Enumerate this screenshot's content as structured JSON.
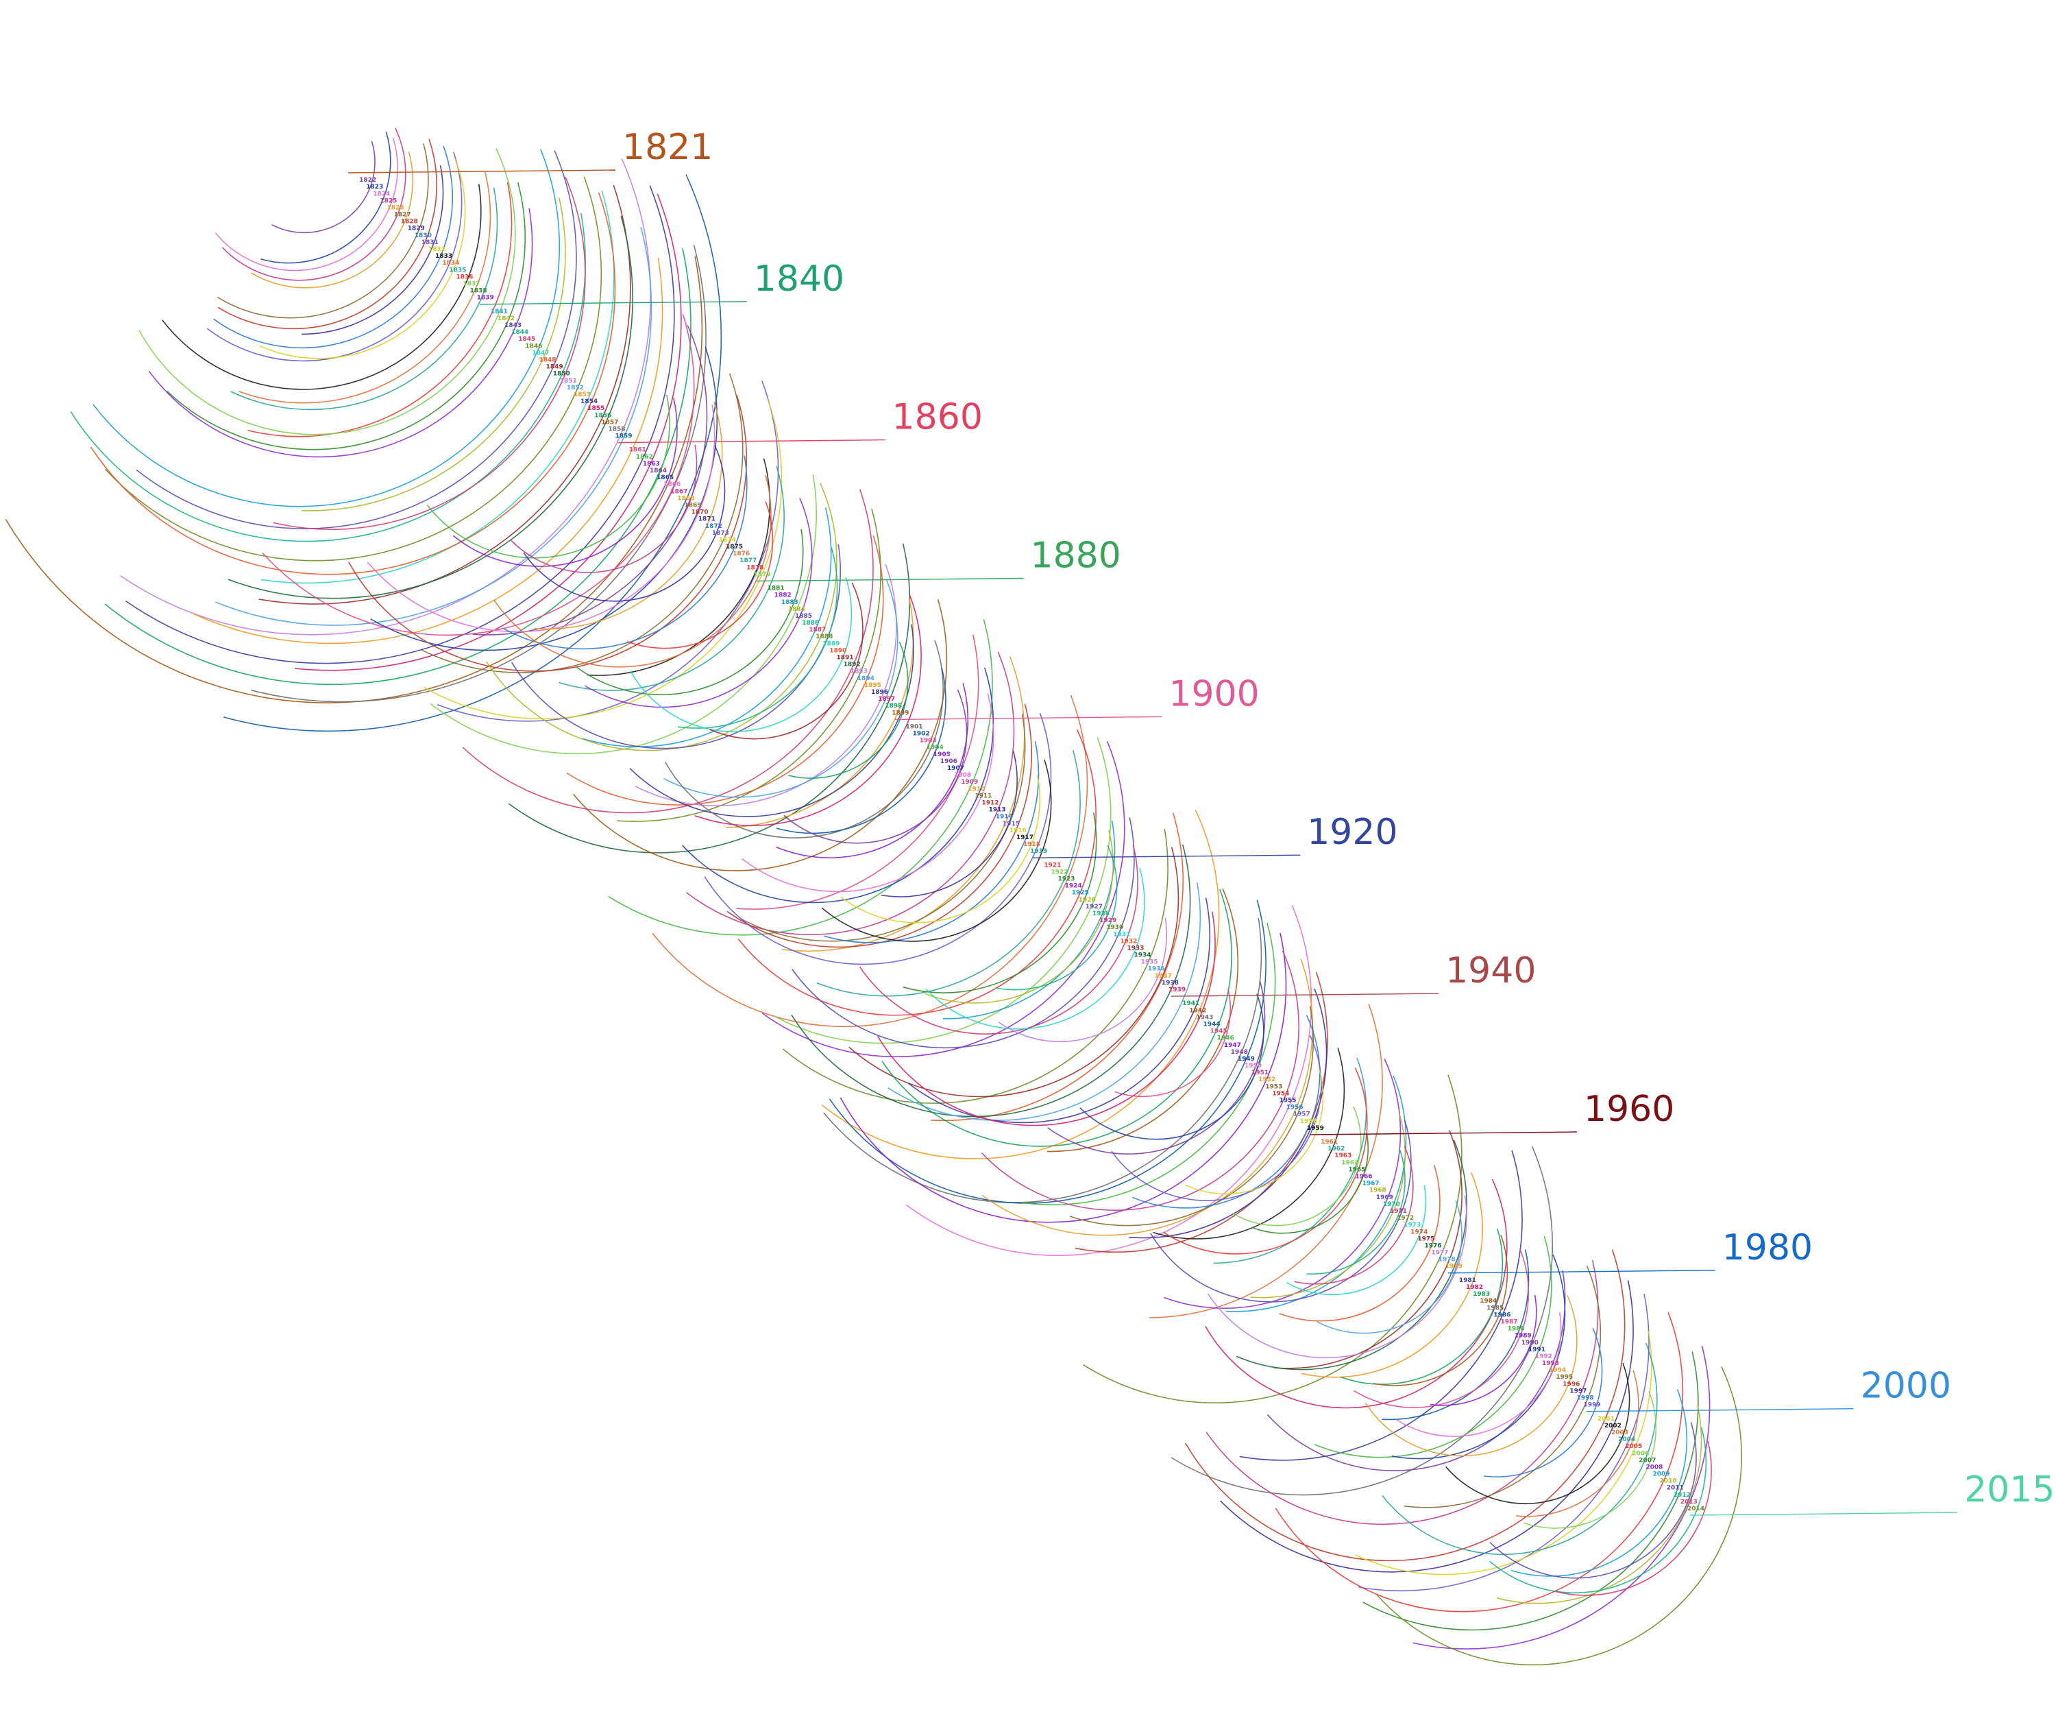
{
  "figure": {
    "first_year": 1821,
    "last_year": 2015,
    "big_labels": [
      {
        "text": "1821",
        "color": "#b5541c"
      },
      {
        "text": "1840",
        "color": "#1f9f78"
      },
      {
        "text": "1860",
        "color": "#e2415f"
      },
      {
        "text": "1880",
        "color": "#3aa55a"
      },
      {
        "text": "1900",
        "color": "#e05a95"
      },
      {
        "text": "1920",
        "color": "#34479e"
      },
      {
        "text": "1940",
        "color": "#a84848"
      },
      {
        "text": "1960",
        "color": "#7a0f14"
      },
      {
        "text": "1980",
        "color": "#1569c9"
      },
      {
        "text": "2000",
        "color": "#3590d8"
      },
      {
        "text": "2015",
        "color": "#4fd3a6"
      }
    ],
    "year_labels": [
      "1822",
      "1823",
      "1824",
      "1825",
      "1826",
      "1827",
      "1828",
      "1829",
      "1830",
      "1831",
      "1832",
      "1833",
      "1834",
      "1835",
      "1836",
      "1837",
      "1838",
      "1839",
      "1841",
      "1842",
      "1843",
      "1844",
      "1845",
      "1846",
      "1847",
      "1848",
      "1849",
      "1850",
      "1851",
      "1852",
      "1853",
      "1854",
      "1855",
      "1856",
      "1857",
      "1858",
      "1859",
      "1861",
      "1862",
      "1863",
      "1864",
      "1865",
      "1866",
      "1867",
      "1868",
      "1869",
      "1870",
      "1871",
      "1872",
      "1873",
      "1874",
      "1875",
      "1876",
      "1877",
      "1878",
      "1879",
      "1881",
      "1882",
      "1883",
      "1884",
      "1885",
      "1886",
      "1887",
      "1888",
      "1889",
      "1890",
      "1891",
      "1892",
      "1893",
      "1894",
      "1895",
      "1896",
      "1897",
      "1898",
      "1899",
      "1901",
      "1902",
      "1903",
      "1904",
      "1905",
      "1906",
      "1907",
      "1908",
      "1909",
      "1910",
      "1911",
      "1912",
      "1913",
      "1914",
      "1915",
      "1916",
      "1917",
      "1918",
      "1919",
      "1921",
      "1922",
      "1923",
      "1924",
      "1925",
      "1926",
      "1927",
      "1928",
      "1929",
      "1930",
      "1931",
      "1932",
      "1933",
      "1934",
      "1935",
      "1936",
      "1937",
      "1938",
      "1939",
      "1941",
      "1942",
      "1943",
      "1944",
      "1945",
      "1946",
      "1947",
      "1948",
      "1949",
      "1950",
      "1951",
      "1952",
      "1953",
      "1954",
      "1955",
      "1956",
      "1957",
      "1958",
      "1959",
      "1961",
      "1962",
      "1963",
      "1964",
      "1965",
      "1966",
      "1967",
      "1968",
      "1969",
      "1970",
      "1971",
      "1972",
      "1973",
      "1974",
      "1975",
      "1976",
      "1977",
      "1978",
      "1979",
      "1981",
      "1982",
      "1983",
      "1984",
      "1985",
      "1986",
      "1987",
      "1988",
      "1989",
      "1990",
      "1991",
      "1992",
      "1993",
      "1994",
      "1995",
      "1996",
      "1997",
      "1998",
      "1999",
      "2001",
      "2002",
      "2003",
      "2004",
      "2005",
      "2006",
      "2007",
      "2008",
      "2009",
      "2010",
      "2011",
      "2012",
      "2013",
      "2014"
    ],
    "palette": [
      "#7b3fa0",
      "#1f3fa8",
      "#e26fd8",
      "#c23b8f",
      "#e3a02b",
      "#8a6d2f",
      "#c0392b",
      "#3b2f9e",
      "#2b7bd6",
      "#6b5bd3",
      "#d9d12a",
      "#1c1c1c",
      "#e2703a",
      "#2aa59a",
      "#e83a3a",
      "#7fd04d",
      "#2e8b2e",
      "#8f2bd6",
      "#1a9ed8",
      "#b0b82a",
      "#5a4bb8",
      "#19b38a",
      "#d43a74",
      "#6a8e23",
      "#2bd6c8",
      "#e65c2b",
      "#9c2b2b",
      "#1d6a3a",
      "#c27be0",
      "#4aa3e8",
      "#f09a1b",
      "#3a3a9e",
      "#d21f6e",
      "#13a35a",
      "#a35a13",
      "#6e6e6e",
      "#0f5aa3",
      "#e04a8a",
      "#45b845",
      "#8a1fd2"
    ]
  }
}
